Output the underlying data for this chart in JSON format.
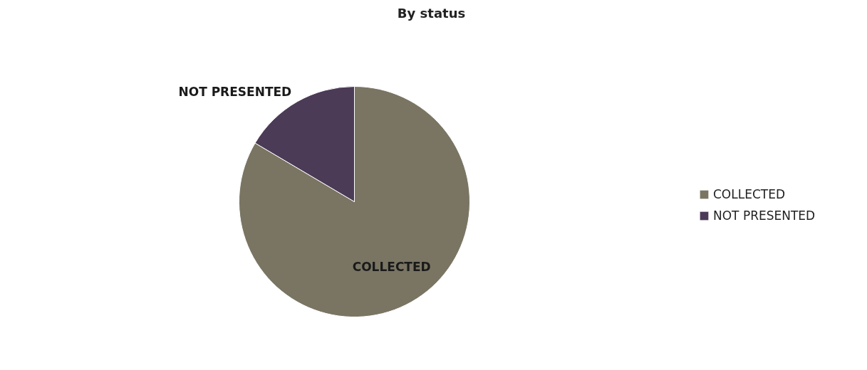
{
  "chart_data": {
    "type": "pie",
    "title": "By status",
    "categories": [
      "COLLECTED",
      "NOT PRESENTED"
    ],
    "values": [
      83.5,
      16.5
    ],
    "colors": [
      "#7a7563",
      "#4b3b57"
    ],
    "legend": "right"
  }
}
